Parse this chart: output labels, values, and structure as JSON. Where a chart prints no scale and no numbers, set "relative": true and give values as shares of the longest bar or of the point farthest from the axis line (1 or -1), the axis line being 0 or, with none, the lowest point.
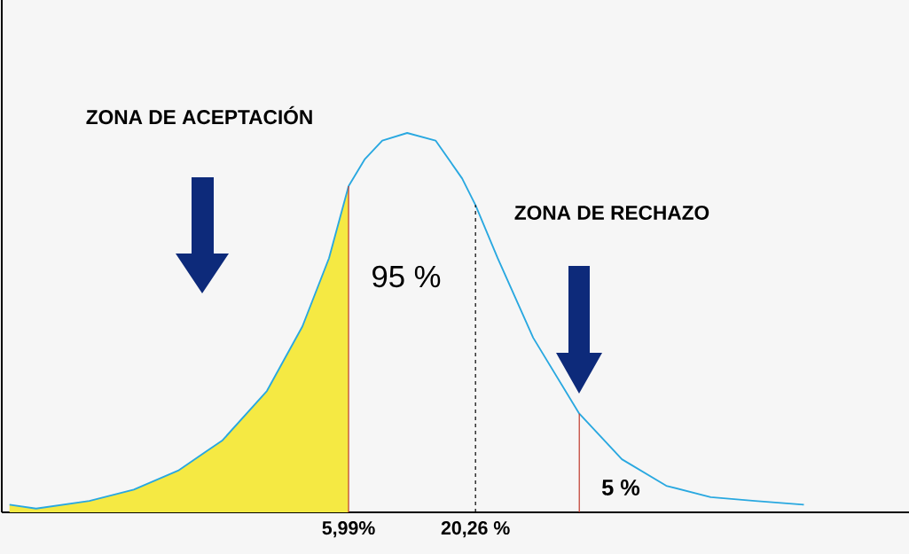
{
  "chart_data": {
    "type": "line",
    "relative": true,
    "xlim": [
      -33,
      69
    ],
    "xticks": [
      {
        "value": 5.99,
        "label": "5,99%"
      },
      {
        "value": 20.26,
        "label": "20,26 %"
      }
    ],
    "series": [
      {
        "color": "#29a8e0",
        "x": [
          -32.13,
          -29.14,
          -23.15,
          -18.16,
          -13.17,
          -8.18,
          -3.19,
          0.8,
          3.79,
          5.99,
          7.79,
          9.78,
          12.58,
          15.77,
          18.76,
          20.26,
          22.75,
          26.75,
          31.93,
          36.72,
          41.71,
          46.7,
          51.69,
          57.18
        ],
        "values": [
          0.02,
          0.01,
          0.03,
          0.06,
          0.11,
          0.19,
          0.32,
          0.49,
          0.67,
          0.86,
          0.93,
          0.98,
          1.0,
          0.98,
          0.88,
          0.81,
          0.67,
          0.46,
          0.26,
          0.14,
          0.07,
          0.04,
          0.03,
          0.02
        ]
      },
      {
        "type": "area",
        "color": "#f5e943",
        "x": [
          -32.13,
          -29.14,
          -23.15,
          -18.16,
          -13.17,
          -8.18,
          -3.19,
          0.8,
          3.79,
          5.99
        ],
        "values": [
          0.02,
          0.01,
          0.03,
          0.06,
          0.11,
          0.19,
          0.32,
          0.49,
          0.67,
          0.86
        ]
      }
    ],
    "ref_lines": [
      {
        "axis": "x",
        "value": 5.99,
        "color": "#c0392b",
        "line_style": "solid"
      },
      {
        "axis": "x",
        "value": 20.26,
        "color": "#000000",
        "line_style": "dashed"
      },
      {
        "axis": "x",
        "value": 31.93,
        "color": "#c0392b",
        "line_style": "solid"
      }
    ],
    "annotations": [
      "ZONA DE ACEPTACIÓN",
      "ZONA DE RECHAZO",
      "95 %",
      "5 %"
    ]
  }
}
